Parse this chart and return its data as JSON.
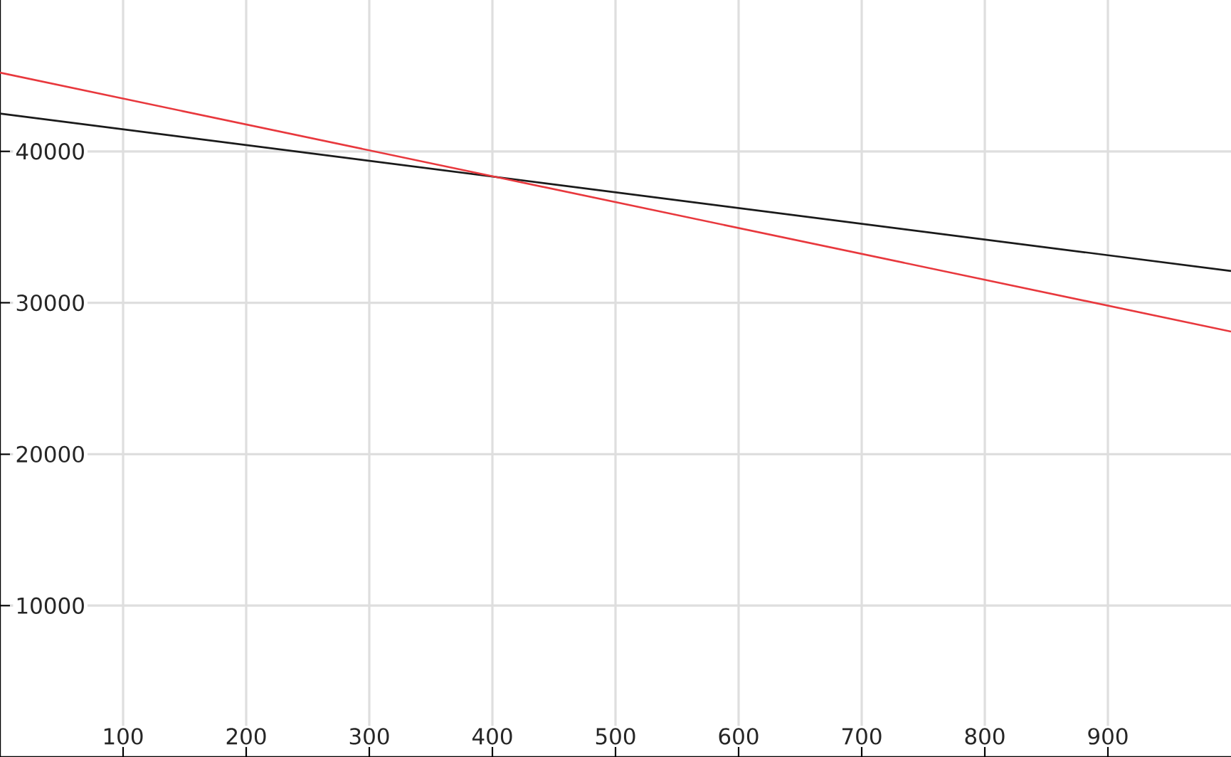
{
  "chart_data": {
    "type": "line",
    "x": [
      0,
      1000
    ],
    "series": [
      {
        "color": "#1a1a1a",
        "values": [
          42500,
          32100
        ]
      },
      {
        "color": "#e8383d",
        "values": [
          45200,
          28100
        ]
      }
    ],
    "xlim": [
      0,
      1000
    ],
    "ylim": [
      0,
      50000
    ],
    "xticks": [
      100,
      200,
      300,
      400,
      500,
      600,
      700,
      800,
      900
    ],
    "yticks": [
      10000,
      20000,
      30000,
      40000
    ],
    "grid": true
  }
}
